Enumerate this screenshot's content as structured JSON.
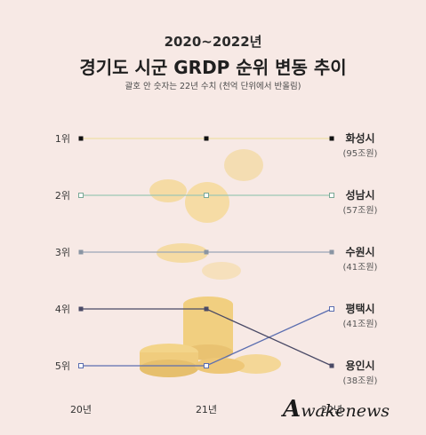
{
  "header": {
    "subtitle_years": "2020~2022년",
    "title": "경기도 시군 GRDP 순위 변동 추이",
    "note": "괄호 안 숫자는 22년 수치 (천억 단위에서 반올림)"
  },
  "watermark": {
    "logo_letter": "A",
    "text": "wakenews"
  },
  "chart_data": {
    "type": "line",
    "title": "경기도 시군 GRDP 순위 변동 추이",
    "subtitle": "2020~2022년",
    "x": [
      "20년",
      "21년",
      "22년"
    ],
    "y_ticks": [
      "1위",
      "2위",
      "3위",
      "4위",
      "5위"
    ],
    "ylim": [
      1,
      5
    ],
    "y_inverted": true,
    "grid": false,
    "legend": "direct labels at right end",
    "series": [
      {
        "name": "화성시",
        "value_label": "(95조원)",
        "ranks": [
          1,
          1,
          1
        ],
        "color": "#efe0a8",
        "marker": "square-filled",
        "marker_color": "#111111"
      },
      {
        "name": "성남시",
        "value_label": "(57조원)",
        "ranks": [
          2,
          2,
          2
        ],
        "color": "#9dc7b4",
        "marker": "square-open",
        "marker_color": "#7aa896"
      },
      {
        "name": "수원시",
        "value_label": "(41조원)",
        "ranks": [
          3,
          3,
          3
        ],
        "color": "#9aa6b6",
        "marker": "square-filled",
        "marker_color": "#8a95a3"
      },
      {
        "name": "평택시",
        "value_label": "(41조원)",
        "ranks": [
          5,
          5,
          4
        ],
        "color": "#5b6eb0",
        "marker": "square-open",
        "marker_color": "#5b6eb0"
      },
      {
        "name": "용인시",
        "value_label": "(38조원)",
        "ranks": [
          4,
          4,
          5
        ],
        "color": "#4a4a66",
        "marker": "square-filled",
        "marker_color": "#4a4a66"
      }
    ]
  }
}
